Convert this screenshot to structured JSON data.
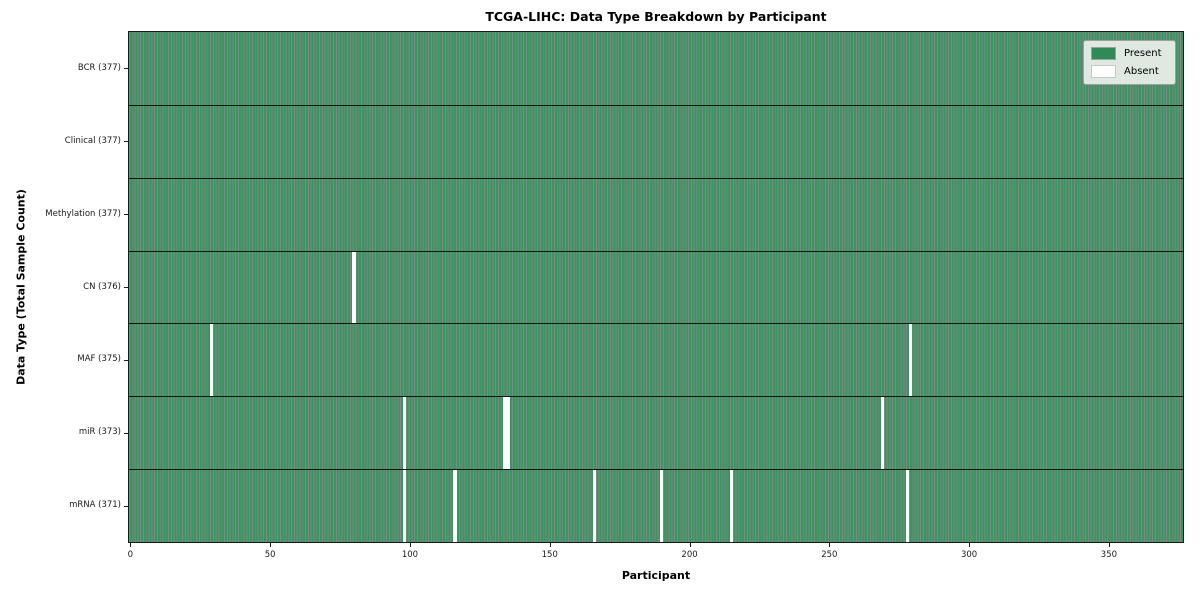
{
  "chart_data": {
    "type": "heatmap",
    "title": "TCGA-LIHC: Data Type Breakdown by Participant",
    "xlabel": "Participant",
    "ylabel": "Data Type (Total Sample Count)",
    "x_ticks": [
      0,
      50,
      100,
      150,
      200,
      250,
      300,
      350
    ],
    "xlim": [
      -0.5,
      376.5
    ],
    "n_participants": 377,
    "grid": false,
    "legend_position": "upper right",
    "legend": [
      {
        "label": "Present",
        "key": "present"
      },
      {
        "label": "Absent",
        "key": "absent"
      }
    ],
    "rows": [
      {
        "data_type": "BCR",
        "label": "BCR (377)",
        "present_count": 377,
        "absent_participants": []
      },
      {
        "data_type": "Clinical",
        "label": "Clinical (377)",
        "present_count": 377,
        "absent_participants": []
      },
      {
        "data_type": "Methylation",
        "label": "Methylation (377)",
        "present_count": 377,
        "absent_participants": []
      },
      {
        "data_type": "CN",
        "label": "CN (376)",
        "present_count": 376,
        "absent_participants": [
          80
        ]
      },
      {
        "data_type": "MAF",
        "label": "MAF (375)",
        "present_count": 375,
        "absent_participants": [
          29,
          279
        ]
      },
      {
        "data_type": "miR",
        "label": "miR (373)",
        "present_count": 373,
        "absent_participants": [
          98,
          134,
          135,
          269
        ]
      },
      {
        "data_type": "mRNA",
        "label": "mRNA (371)",
        "present_count": 371,
        "absent_participants": [
          98,
          116,
          166,
          190,
          215,
          278
        ]
      }
    ]
  },
  "colors": {
    "present": "#2e8b57",
    "present_fill": "#3b9461",
    "cell_edge": "rgba(15,42,27,0.55)",
    "absent": "#ffffff",
    "absent_swatch_border": "#c8c8c8",
    "row_separator": "rgba(0,0,0,0.85)",
    "axis": "#1a1a1a",
    "legend_bg": "rgba(235,240,235,0.92)",
    "legend_border": "#9aa09a"
  }
}
